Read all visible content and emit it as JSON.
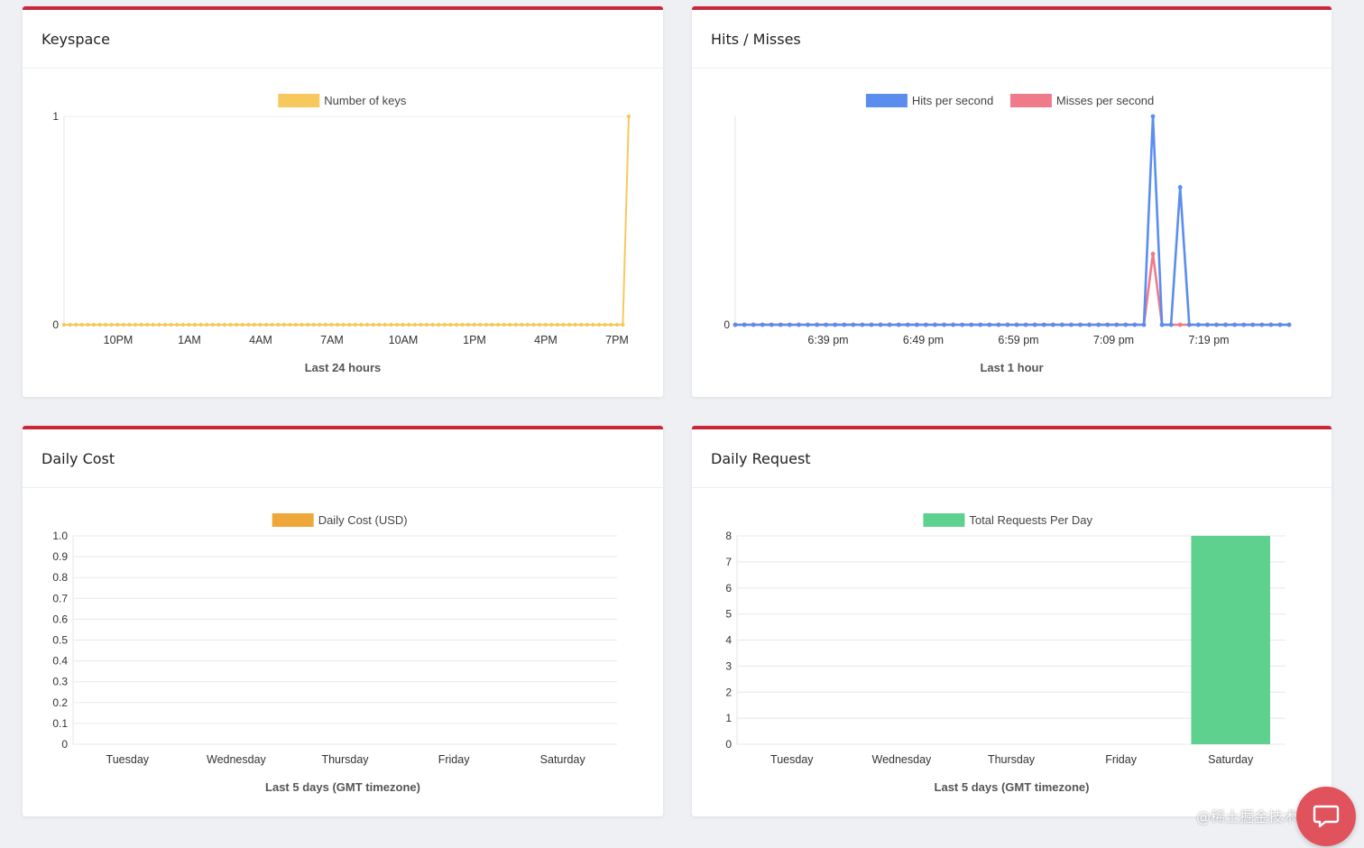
{
  "panels": [
    {
      "title": "Keyspace"
    },
    {
      "title": "Hits / Misses"
    },
    {
      "title": "Daily Cost"
    },
    {
      "title": "Daily Request"
    }
  ],
  "colors": {
    "card_accent": "#c9283a",
    "keys": "#f7c95c",
    "hits": "#5b8def",
    "misses": "#ee7a8a",
    "cost": "#f0a73a",
    "requests": "#5fd18f"
  },
  "watermark": "@稀土掘金技术社区",
  "chart_data": [
    {
      "type": "line",
      "title": "Keyspace",
      "xlabel": "Last 24 hours",
      "ylabel": "",
      "x_tick_labels": [
        "10PM",
        "1AM",
        "4AM",
        "7AM",
        "10AM",
        "1PM",
        "4PM",
        "7PM"
      ],
      "y_ticks": [
        "0",
        "1"
      ],
      "ylim": [
        0,
        1
      ],
      "series": [
        {
          "name": "Number of keys",
          "color": "#f7c95c",
          "points_description": "zero for the whole window, jumps to 1 at the last sample",
          "values": [
            0,
            0,
            0,
            0,
            0,
            0,
            0,
            0,
            0,
            0,
            0,
            0,
            0,
            0,
            0,
            0,
            0,
            0,
            0,
            0,
            0,
            0,
            0,
            0,
            0,
            0,
            0,
            0,
            0,
            0,
            0,
            0,
            0,
            0,
            0,
            0,
            0,
            0,
            0,
            0,
            0,
            0,
            0,
            0,
            0,
            0,
            0,
            0,
            0,
            0,
            0,
            0,
            0,
            0,
            0,
            0,
            0,
            0,
            0,
            0,
            0,
            0,
            0,
            0,
            0,
            0,
            0,
            0,
            0,
            0,
            0,
            0,
            0,
            0,
            0,
            0,
            0,
            0,
            0,
            0,
            0,
            0,
            0,
            0,
            0,
            0,
            0,
            0,
            0,
            0,
            0,
            0,
            0,
            0,
            0,
            1
          ]
        }
      ],
      "legend": "top-center"
    },
    {
      "type": "line",
      "title": "Hits / Misses",
      "xlabel": "Last 1 hour",
      "ylabel": "",
      "x_tick_labels": [
        "6:39 pm",
        "6:49 pm",
        "6:59 pm",
        "7:09 pm",
        "7:19 pm"
      ],
      "y_ticks": [
        "0"
      ],
      "ylim": [
        0,
        1
      ],
      "series": [
        {
          "name": "Hits per second",
          "color": "#5b8def",
          "values": [
            0,
            0,
            0,
            0,
            0,
            0,
            0,
            0,
            0,
            0,
            0,
            0,
            0,
            0,
            0,
            0,
            0,
            0,
            0,
            0,
            0,
            0,
            0,
            0,
            0,
            0,
            0,
            0,
            0,
            0,
            0,
            0,
            0,
            0,
            0,
            0,
            0,
            0,
            0,
            0,
            0,
            0,
            0,
            0,
            0,
            0,
            1,
            0,
            0,
            0.66,
            0,
            0,
            0,
            0,
            0,
            0,
            0,
            0,
            0,
            0,
            0,
            0
          ]
        },
        {
          "name": "Misses per second",
          "color": "#ee7a8a",
          "values": [
            0,
            0,
            0,
            0,
            0,
            0,
            0,
            0,
            0,
            0,
            0,
            0,
            0,
            0,
            0,
            0,
            0,
            0,
            0,
            0,
            0,
            0,
            0,
            0,
            0,
            0,
            0,
            0,
            0,
            0,
            0,
            0,
            0,
            0,
            0,
            0,
            0,
            0,
            0,
            0,
            0,
            0,
            0,
            0,
            0,
            0,
            0.34,
            0,
            0,
            0,
            0,
            0,
            0,
            0,
            0,
            0,
            0,
            0,
            0,
            0,
            0,
            0
          ]
        }
      ],
      "legend": "top-center"
    },
    {
      "type": "bar",
      "title": "Daily Cost",
      "xlabel": "Last 5 days (GMT timezone)",
      "ylabel": "",
      "categories": [
        "Tuesday",
        "Wednesday",
        "Thursday",
        "Friday",
        "Saturday"
      ],
      "y_ticks": [
        "0",
        "0.1",
        "0.2",
        "0.3",
        "0.4",
        "0.5",
        "0.6",
        "0.7",
        "0.8",
        "0.9",
        "1.0"
      ],
      "ylim": [
        0,
        1
      ],
      "series": [
        {
          "name": "Daily Cost (USD)",
          "color": "#f0a73a",
          "values": [
            0,
            0,
            0,
            0,
            0
          ]
        }
      ],
      "legend": "top-center",
      "grid": true
    },
    {
      "type": "bar",
      "title": "Daily Request",
      "xlabel": "Last 5 days (GMT timezone)",
      "ylabel": "",
      "categories": [
        "Tuesday",
        "Wednesday",
        "Thursday",
        "Friday",
        "Saturday"
      ],
      "y_ticks": [
        "0",
        "1",
        "2",
        "3",
        "4",
        "5",
        "6",
        "7",
        "8"
      ],
      "ylim": [
        0,
        8
      ],
      "series": [
        {
          "name": "Total Requests Per Day",
          "color": "#5fd18f",
          "values": [
            0,
            0,
            0,
            0,
            8
          ]
        }
      ],
      "legend": "top-center",
      "grid": true
    }
  ]
}
